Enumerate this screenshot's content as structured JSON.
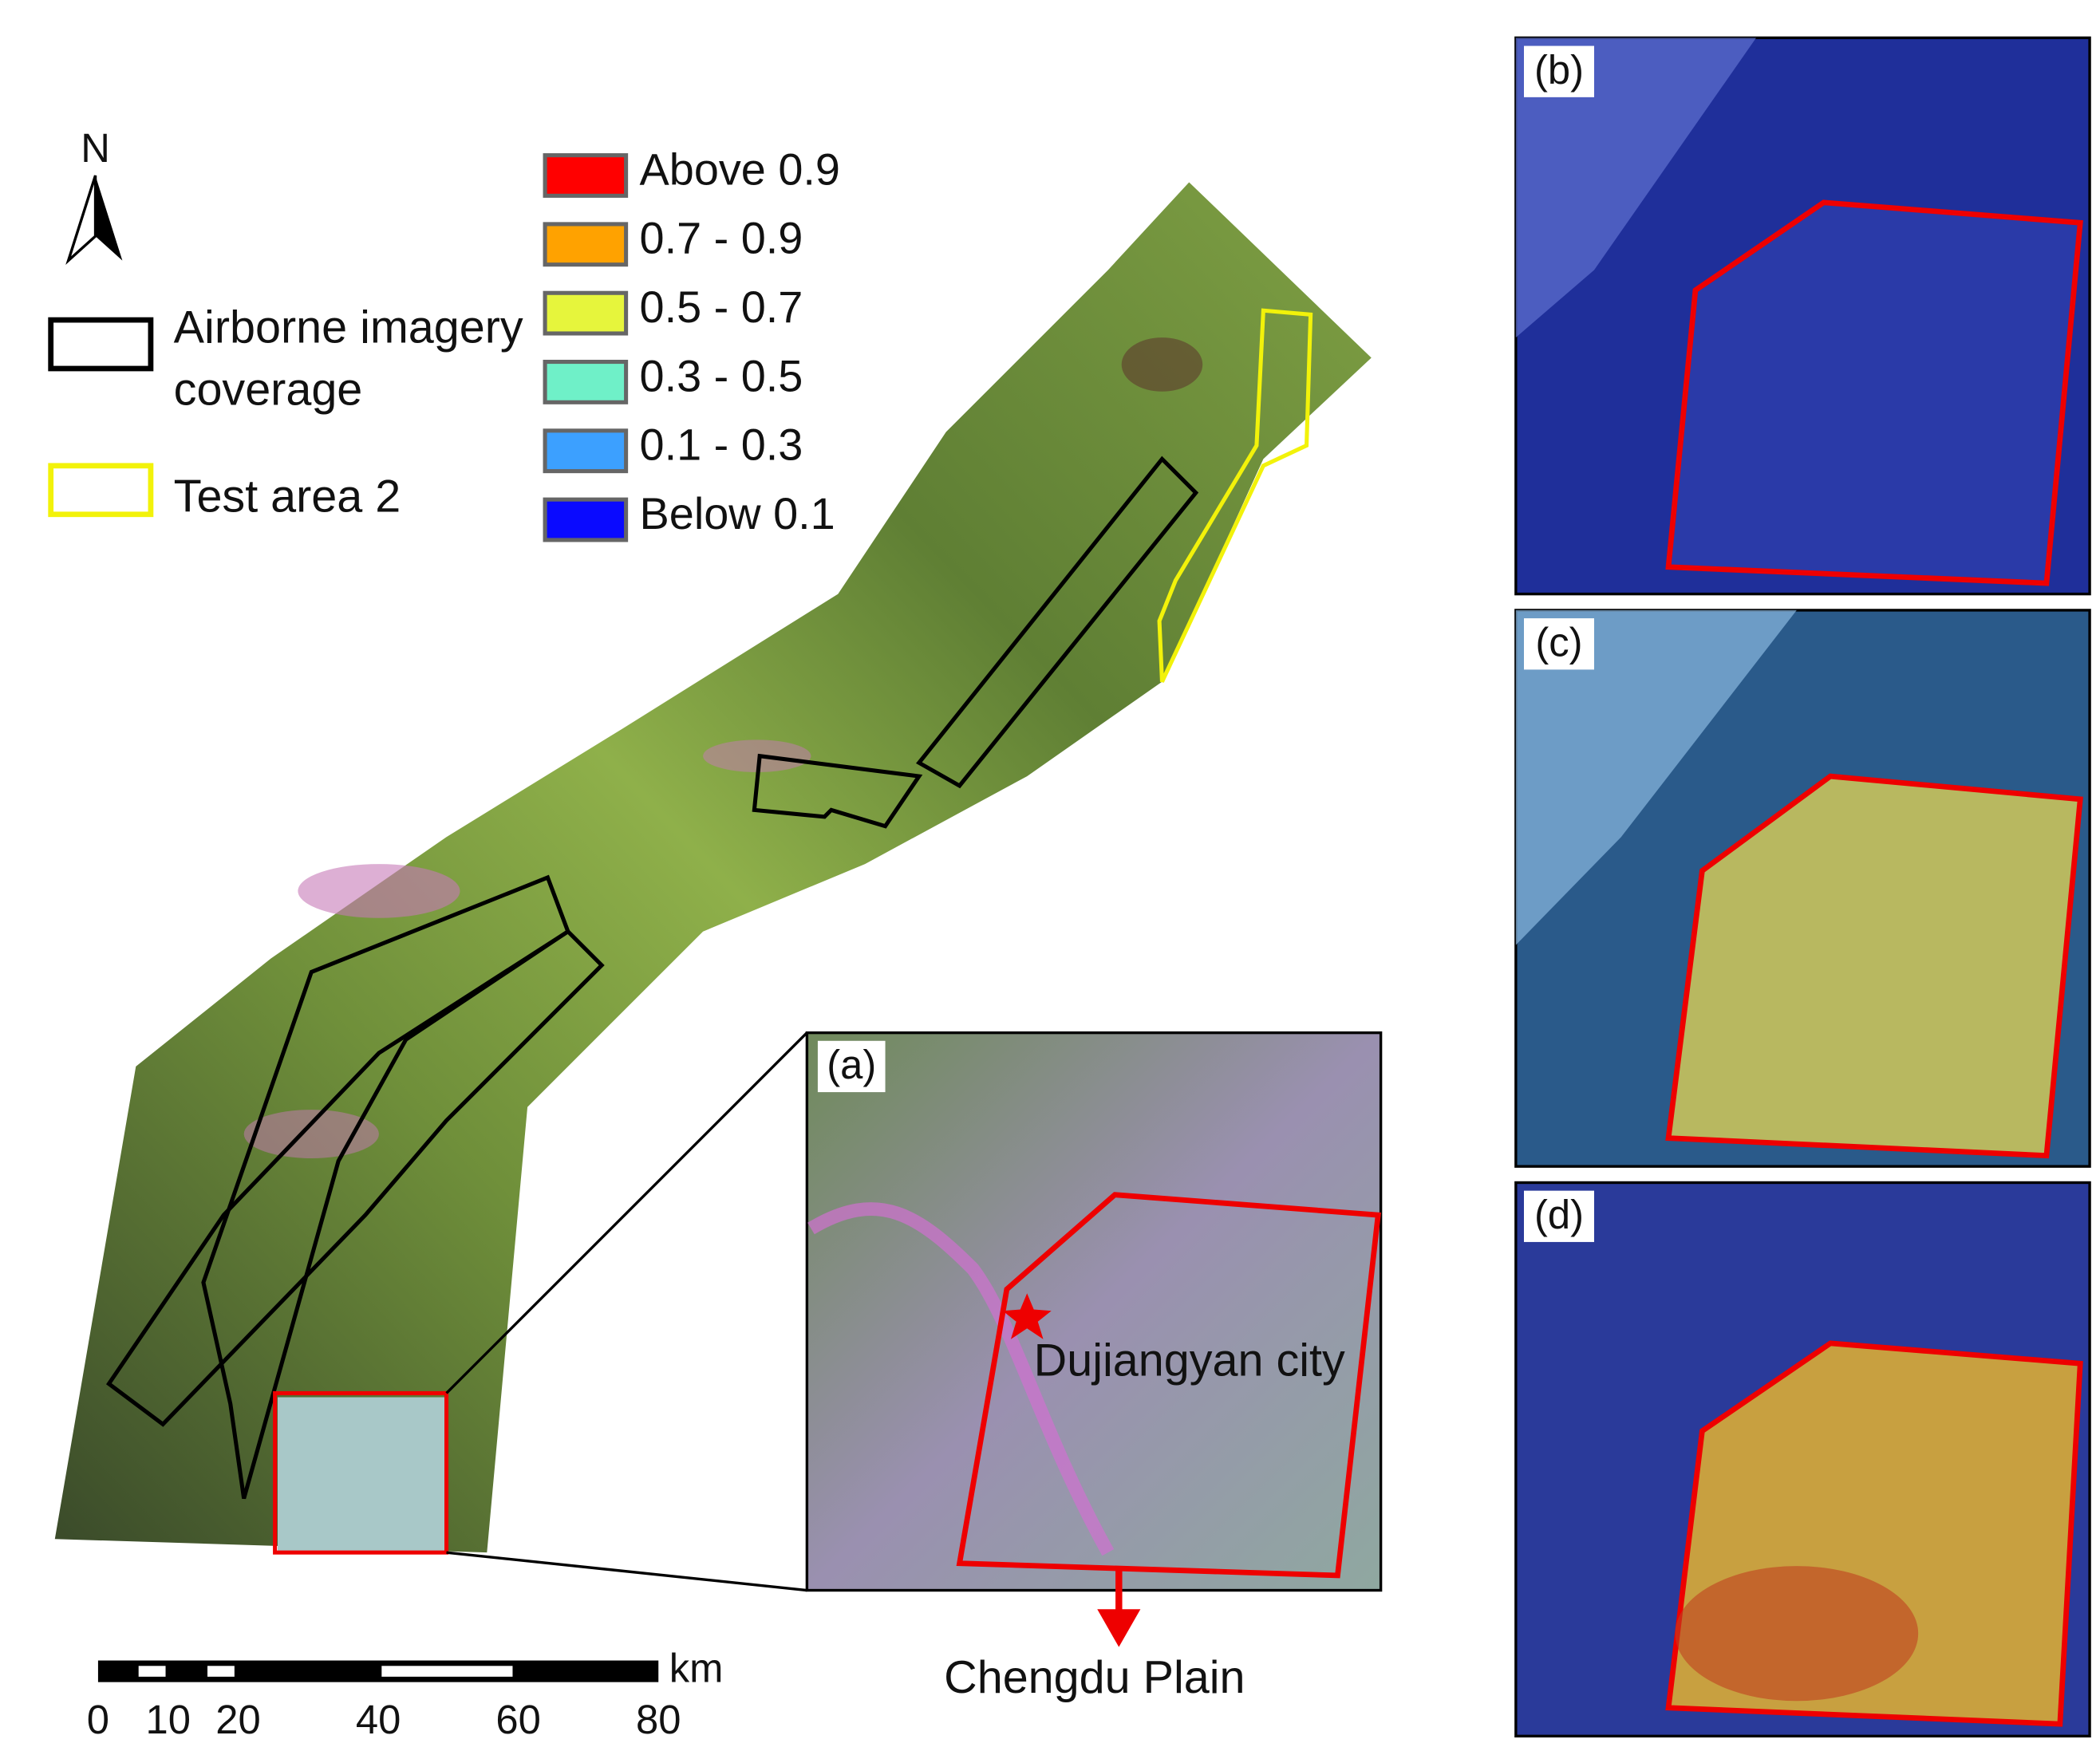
{
  "north": "N",
  "legend": {
    "items": [
      {
        "label": "Airborne imagery coverage",
        "color": "#000000"
      },
      {
        "label": "Test area 2",
        "color": "#f2f20a"
      }
    ],
    "classes": [
      {
        "label": "Above 0.9",
        "color": "#ff0000"
      },
      {
        "label": "0.7 - 0.9",
        "color": "#ffa200"
      },
      {
        "label": "0.5 - 0.7",
        "color": "#e6f53c"
      },
      {
        "label": "0.3 - 0.5",
        "color": "#6ff0c8"
      },
      {
        "label": "0.1 - 0.3",
        "color": "#3ca0ff"
      },
      {
        "label": "Below 0.1",
        "color": "#0a0aff"
      }
    ]
  },
  "panels": [
    "(a)",
    "(b)",
    "(c)",
    "(d)"
  ],
  "annotations": {
    "city": "Dujiangyan city",
    "plain": "Chengdu Plain"
  },
  "scale_bar": {
    "unit": "km",
    "ticks": [
      0,
      10,
      20,
      40,
      60,
      80
    ]
  }
}
